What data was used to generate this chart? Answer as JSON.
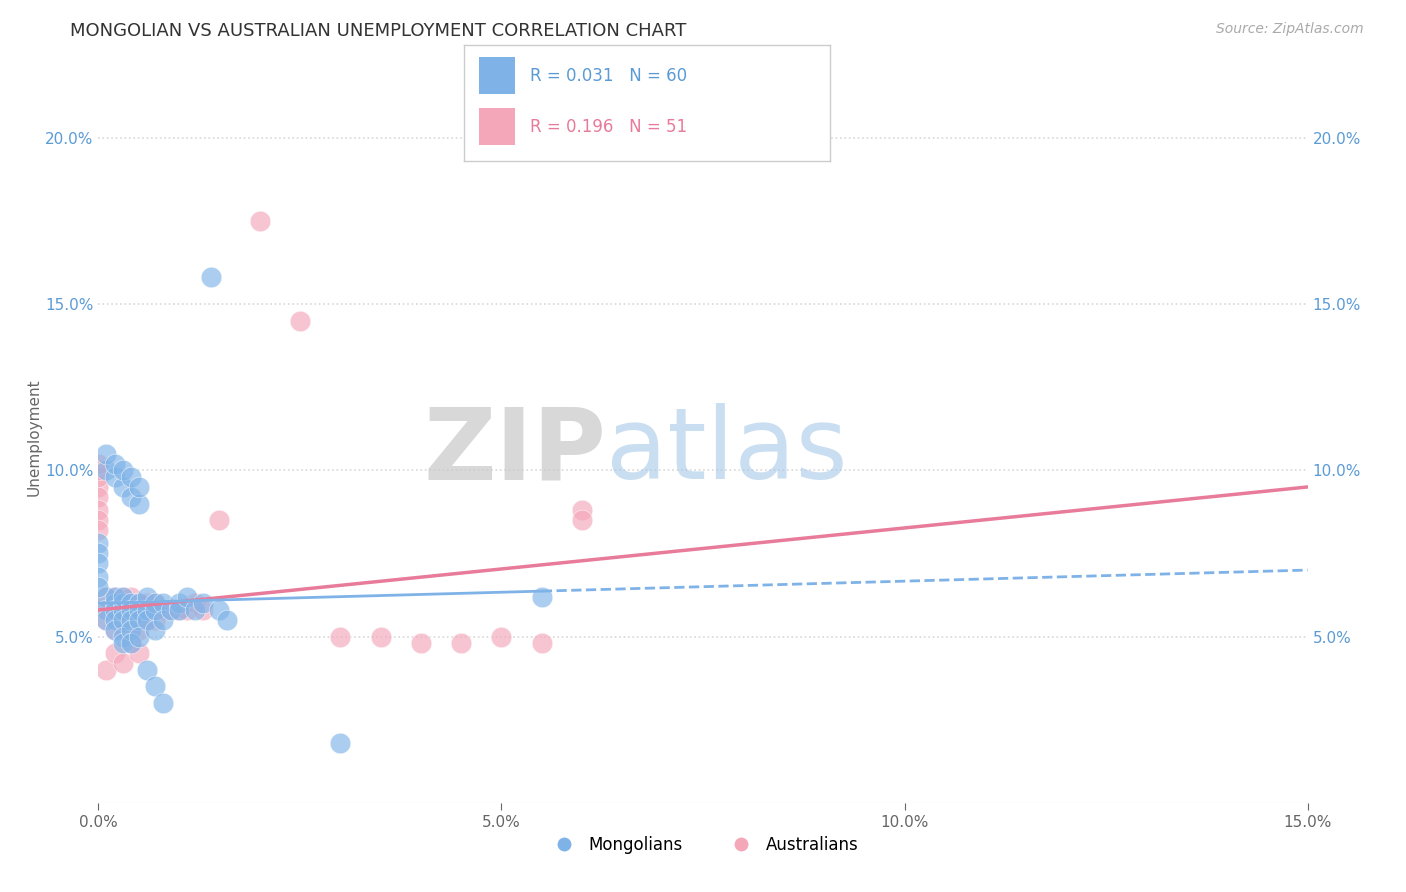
{
  "title": "MONGOLIAN VS AUSTRALIAN UNEMPLOYMENT CORRELATION CHART",
  "source": "Source: ZipAtlas.com",
  "ylabel": "Unemployment",
  "xlim": [
    0.0,
    0.15
  ],
  "ylim": [
    0.0,
    0.22
  ],
  "yticks": [
    0.05,
    0.1,
    0.15,
    0.2
  ],
  "ytick_labels": [
    "5.0%",
    "10.0%",
    "15.0%",
    "20.0%"
  ],
  "xticks": [
    0.0,
    0.05,
    0.1,
    0.15
  ],
  "xtick_labels": [
    "0.0%",
    "5.0%",
    "10.0%",
    "15.0%"
  ],
  "mongolian_color": "#7fb3e8",
  "australian_color": "#f4a7b9",
  "mongolian_line_color": "#7fb3e8",
  "australian_line_color": "#e87b9a",
  "mongolian_R": 0.031,
  "mongolian_N": 60,
  "australian_R": 0.196,
  "australian_N": 51,
  "watermark_ZIP": "ZIP",
  "watermark_atlas": "atlas",
  "background_color": "#ffffff",
  "grid_color": "#d8d8d8",
  "mongolians_scatter_x": [
    0.001,
    0.001,
    0.001,
    0.002,
    0.002,
    0.002,
    0.002,
    0.002,
    0.003,
    0.003,
    0.003,
    0.003,
    0.003,
    0.003,
    0.004,
    0.004,
    0.004,
    0.004,
    0.004,
    0.005,
    0.005,
    0.005,
    0.005,
    0.006,
    0.006,
    0.006,
    0.007,
    0.007,
    0.007,
    0.008,
    0.008,
    0.009,
    0.01,
    0.01,
    0.011,
    0.012,
    0.013,
    0.014,
    0.015,
    0.016,
    0.001,
    0.001,
    0.002,
    0.002,
    0.003,
    0.003,
    0.004,
    0.004,
    0.005,
    0.005,
    0.006,
    0.007,
    0.008,
    0.0,
    0.0,
    0.0,
    0.0,
    0.0,
    0.055,
    0.03
  ],
  "mongolians_scatter_y": [
    0.062,
    0.058,
    0.055,
    0.06,
    0.062,
    0.058,
    0.055,
    0.052,
    0.06,
    0.058,
    0.062,
    0.055,
    0.05,
    0.048,
    0.06,
    0.058,
    0.055,
    0.052,
    0.048,
    0.06,
    0.058,
    0.055,
    0.05,
    0.062,
    0.058,
    0.055,
    0.06,
    0.058,
    0.052,
    0.06,
    0.055,
    0.058,
    0.06,
    0.058,
    0.062,
    0.058,
    0.06,
    0.158,
    0.058,
    0.055,
    0.1,
    0.105,
    0.098,
    0.102,
    0.095,
    0.1,
    0.092,
    0.098,
    0.09,
    0.095,
    0.04,
    0.035,
    0.03,
    0.078,
    0.075,
    0.072,
    0.068,
    0.065,
    0.062,
    0.018
  ],
  "australians_scatter_x": [
    0.001,
    0.001,
    0.001,
    0.002,
    0.002,
    0.002,
    0.002,
    0.003,
    0.003,
    0.003,
    0.003,
    0.004,
    0.004,
    0.004,
    0.005,
    0.005,
    0.005,
    0.006,
    0.006,
    0.007,
    0.007,
    0.008,
    0.009,
    0.01,
    0.011,
    0.012,
    0.013,
    0.0,
    0.0,
    0.0,
    0.0,
    0.0,
    0.0,
    0.0,
    0.0,
    0.001,
    0.002,
    0.003,
    0.004,
    0.005,
    0.03,
    0.035,
    0.04,
    0.045,
    0.05,
    0.055,
    0.06,
    0.06,
    0.02,
    0.025,
    0.015
  ],
  "australians_scatter_y": [
    0.062,
    0.058,
    0.055,
    0.062,
    0.058,
    0.055,
    0.052,
    0.062,
    0.058,
    0.055,
    0.052,
    0.062,
    0.058,
    0.052,
    0.06,
    0.058,
    0.052,
    0.06,
    0.055,
    0.06,
    0.055,
    0.058,
    0.058,
    0.058,
    0.058,
    0.06,
    0.058,
    0.095,
    0.098,
    0.092,
    0.1,
    0.102,
    0.088,
    0.085,
    0.082,
    0.04,
    0.045,
    0.042,
    0.048,
    0.045,
    0.05,
    0.05,
    0.048,
    0.048,
    0.05,
    0.048,
    0.088,
    0.085,
    0.175,
    0.145,
    0.085
  ],
  "mon_trend_x0": 0.0,
  "mon_trend_y0": 0.06,
  "mon_trend_x1": 0.15,
  "mon_trend_y1": 0.07,
  "aus_trend_x0": 0.0,
  "aus_trend_y0": 0.058,
  "aus_trend_x1": 0.15,
  "aus_trend_y1": 0.095
}
